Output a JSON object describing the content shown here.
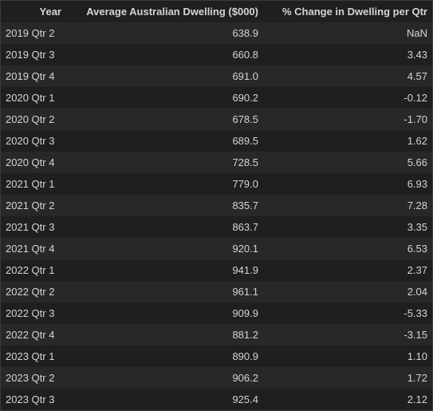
{
  "table": {
    "columns": [
      "Year",
      "Average Australian Dwelling ($000)",
      "% Change in Dwelling per Qtr"
    ],
    "rows": [
      {
        "year": "2019 Qtr 2",
        "avg": "638.9",
        "change": "NaN"
      },
      {
        "year": "2019 Qtr 3",
        "avg": "660.8",
        "change": "3.43"
      },
      {
        "year": "2019 Qtr 4",
        "avg": "691.0",
        "change": "4.57"
      },
      {
        "year": "2020 Qtr 1",
        "avg": "690.2",
        "change": "-0.12"
      },
      {
        "year": "2020 Qtr 2",
        "avg": "678.5",
        "change": "-1.70"
      },
      {
        "year": "2020 Qtr 3",
        "avg": "689.5",
        "change": "1.62"
      },
      {
        "year": "2020 Qtr 4",
        "avg": "728.5",
        "change": "5.66"
      },
      {
        "year": "2021 Qtr 1",
        "avg": "779.0",
        "change": "6.93"
      },
      {
        "year": "2021 Qtr 2",
        "avg": "835.7",
        "change": "7.28"
      },
      {
        "year": "2021 Qtr 3",
        "avg": "863.7",
        "change": "3.35"
      },
      {
        "year": "2021 Qtr 4",
        "avg": "920.1",
        "change": "6.53"
      },
      {
        "year": "2022 Qtr 1",
        "avg": "941.9",
        "change": "2.37"
      },
      {
        "year": "2022 Qtr 2",
        "avg": "961.1",
        "change": "2.04"
      },
      {
        "year": "2022 Qtr 3",
        "avg": "909.9",
        "change": "-5.33"
      },
      {
        "year": "2022 Qtr 4",
        "avg": "881.2",
        "change": "-3.15"
      },
      {
        "year": "2023 Qtr 1",
        "avg": "890.9",
        "change": "1.10"
      },
      {
        "year": "2023 Qtr 2",
        "avg": "906.2",
        "change": "1.72"
      },
      {
        "year": "2023 Qtr 3",
        "avg": "925.4",
        "change": "2.12"
      }
    ]
  }
}
